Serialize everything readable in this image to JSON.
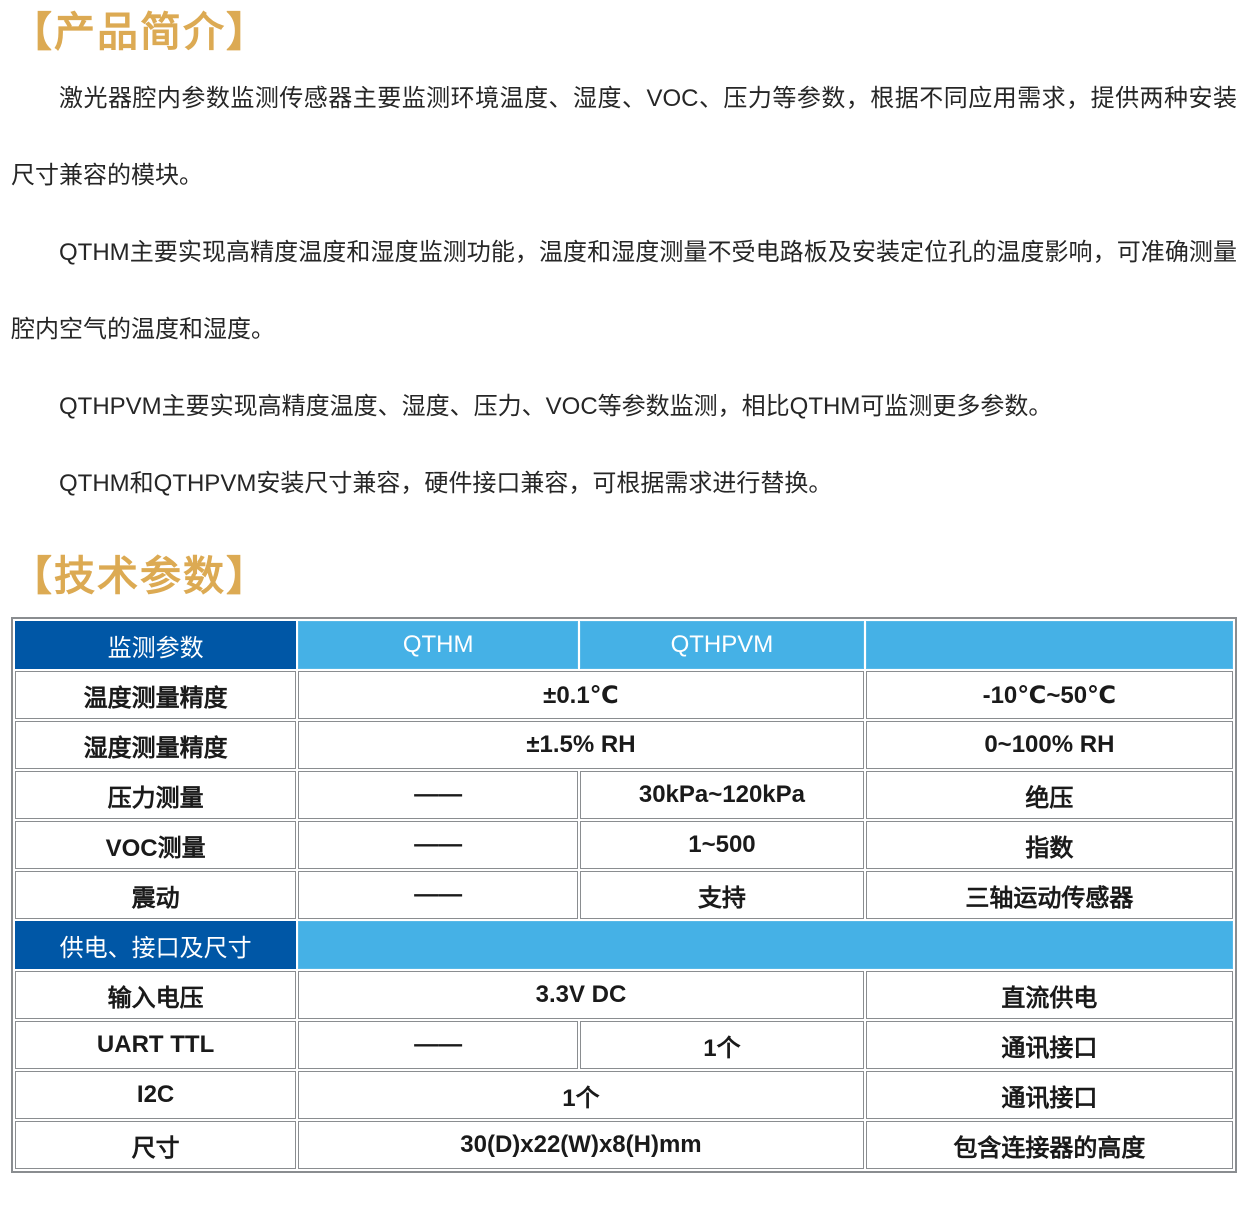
{
  "colors": {
    "accent_gold": "#DCAA53",
    "header_dark_blue": "#0057A6",
    "header_light_blue": "#45B1E6",
    "table_border": "#8A8D90",
    "text_color": "#262626"
  },
  "intro": {
    "heading": "【产品简介】",
    "paragraphs": [
      "激光器腔内参数监测传感器主要监测环境温度、湿度、VOC、压力等参数，根据不同应用需求，提供两种安装尺寸兼容的模块。",
      "QTHM主要实现高精度温度和湿度监测功能，温度和湿度测量不受电路板及安装定位孔的温度影响，可准确测量腔内空气的温度和湿度。",
      "QTHPVM主要实现高精度温度、湿度、压力、VOC等参数监测，相比QTHM可监测更多参数。",
      "QTHM和QTHPVM安装尺寸兼容，硬件接口兼容，可根据需求进行替换。"
    ]
  },
  "specs": {
    "heading": "【技术参数】",
    "table": {
      "columns_pct": [
        23.2,
        23.1,
        23.4,
        30.3
      ],
      "rows": [
        {
          "type": "header",
          "cells": [
            {
              "text": "监测参数",
              "span": 1,
              "style": "dark"
            },
            {
              "text": "QTHM",
              "span": 1,
              "style": "light"
            },
            {
              "text": "QTHPVM",
              "span": 1,
              "style": "light"
            },
            {
              "text": "",
              "span": 1,
              "style": "light"
            }
          ]
        },
        {
          "type": "data",
          "cells": [
            {
              "text": "温度测量精度",
              "span": 1
            },
            {
              "text": "±0.1℃",
              "span": 2
            },
            {
              "text": "-10℃~50℃",
              "span": 1
            }
          ]
        },
        {
          "type": "data",
          "cells": [
            {
              "text": "湿度测量精度",
              "span": 1
            },
            {
              "text": "±1.5% RH",
              "span": 2
            },
            {
              "text": "0~100% RH",
              "span": 1
            }
          ]
        },
        {
          "type": "data",
          "cells": [
            {
              "text": "压力测量",
              "span": 1
            },
            {
              "text": "——",
              "span": 1
            },
            {
              "text": "30kPa~120kPa",
              "span": 1
            },
            {
              "text": "绝压",
              "span": 1
            }
          ]
        },
        {
          "type": "data",
          "cells": [
            {
              "text": "VOC测量",
              "span": 1
            },
            {
              "text": "——",
              "span": 1
            },
            {
              "text": "1~500",
              "span": 1
            },
            {
              "text": "指数",
              "span": 1
            }
          ]
        },
        {
          "type": "data",
          "cells": [
            {
              "text": "震动",
              "span": 1
            },
            {
              "text": "——",
              "span": 1
            },
            {
              "text": "支持",
              "span": 1
            },
            {
              "text": "三轴运动传感器",
              "span": 1
            }
          ]
        },
        {
          "type": "section",
          "cells": [
            {
              "text": "供电、接口及尺寸",
              "span": 1,
              "style": "dark"
            },
            {
              "text": "",
              "span": 3,
              "style": "light"
            }
          ]
        },
        {
          "type": "data",
          "cells": [
            {
              "text": "输入电压",
              "span": 1
            },
            {
              "text": "3.3V DC",
              "span": 2
            },
            {
              "text": "直流供电",
              "span": 1
            }
          ]
        },
        {
          "type": "data",
          "cells": [
            {
              "text": "UART TTL",
              "span": 1
            },
            {
              "text": "——",
              "span": 1
            },
            {
              "text": "1个",
              "span": 1
            },
            {
              "text": "通讯接口",
              "span": 1
            }
          ]
        },
        {
          "type": "data",
          "cells": [
            {
              "text": "I2C",
              "span": 1
            },
            {
              "text": "1个",
              "span": 2
            },
            {
              "text": "通讯接口",
              "span": 1
            }
          ]
        },
        {
          "type": "data",
          "cells": [
            {
              "text": "尺寸",
              "span": 1
            },
            {
              "text": "30(D)x22(W)x8(H)mm",
              "span": 2
            },
            {
              "text": "包含连接器的高度",
              "span": 1
            }
          ]
        }
      ]
    }
  }
}
